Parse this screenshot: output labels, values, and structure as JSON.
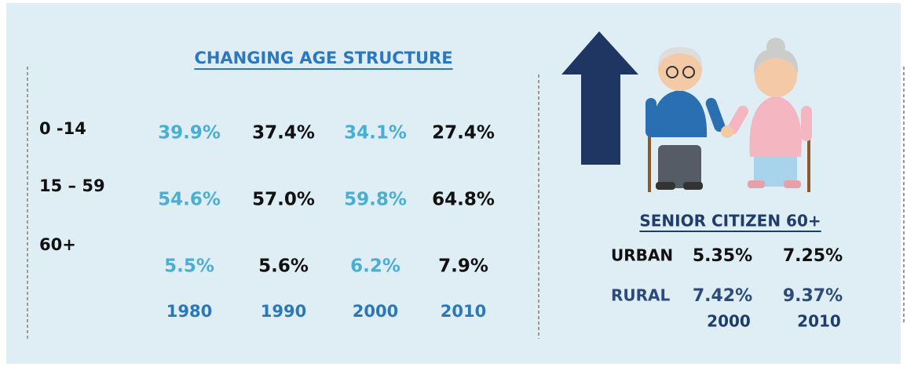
{
  "left": {
    "title": "CHANGING AGE STRUCTURE",
    "rows": [
      {
        "label": "0 -14",
        "values": [
          "39.9%",
          "37.4%",
          "34.1%",
          "27.4%"
        ]
      },
      {
        "label": "15 – 59",
        "values": [
          "54.6%",
          "57.0%",
          "59.8%",
          "64.8%"
        ]
      },
      {
        "label": "60+",
        "values": [
          "5.5%",
          "5.6%",
          "6.2%",
          "7.9%"
        ]
      }
    ],
    "years": [
      "1980",
      "1990",
      "2000",
      "2010"
    ]
  },
  "right": {
    "title": "SENIOR CITIZEN 60+",
    "rows": [
      {
        "label": "URBAN",
        "values": [
          "5.35%",
          "7.25%"
        ]
      },
      {
        "label": "RURAL",
        "values": [
          "7.42%",
          "9.37%"
        ]
      }
    ],
    "years": [
      "2000",
      "2010"
    ]
  }
}
